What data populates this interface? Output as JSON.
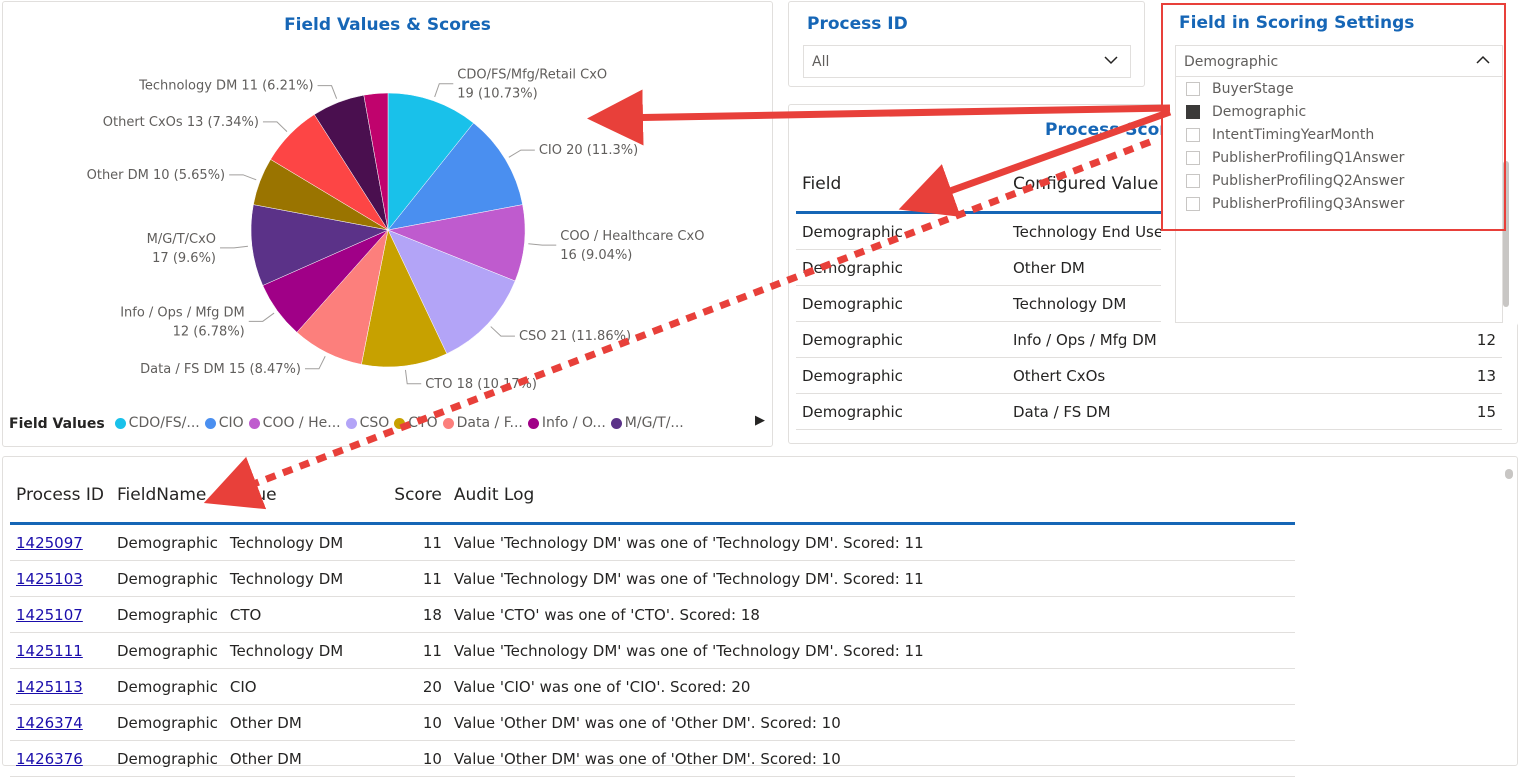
{
  "pie_card": {
    "title": "Field Values & Scores",
    "legend_title": "Field Values",
    "legend": [
      {
        "label": "CDO/FS/...",
        "color": "#19c1ea"
      },
      {
        "label": "CIO",
        "color": "#4a8ff0"
      },
      {
        "label": "COO / He...",
        "color": "#bf5bce"
      },
      {
        "label": "CSO",
        "color": "#b3a4f7"
      },
      {
        "label": "CTO",
        "color": "#c7a100"
      },
      {
        "label": "Data / F...",
        "color": "#fc7f7c"
      },
      {
        "label": "Info / O...",
        "color": "#a00087"
      },
      {
        "label": "M/G/T/...",
        "color": "#5b3288"
      }
    ],
    "legend_arrow": "▶"
  },
  "chart_data": {
    "type": "pie",
    "title": "Field Values & Scores",
    "slices": [
      {
        "label": "CDO/FS/Mfg/Retail CxO",
        "value": 19,
        "pct": "10.73%",
        "color": "#19c1ea",
        "text1": "CDO/FS/Mfg/Retail CxO",
        "text2": "19 (10.73%)"
      },
      {
        "label": "CIO",
        "value": 20,
        "pct": "11.3%",
        "color": "#4a8ff0",
        "text1": "CIO 20 (11.3%)",
        "text2": ""
      },
      {
        "label": "COO / Healthcare CxO",
        "value": 16,
        "pct": "9.04%",
        "color": "#bf5bce",
        "text1": "COO / Healthcare CxO",
        "text2": "16 (9.04%)"
      },
      {
        "label": "CSO",
        "value": 21,
        "pct": "11.86%",
        "color": "#b3a4f7",
        "text1": "CSO 21 (11.86%)",
        "text2": ""
      },
      {
        "label": "CTO",
        "value": 18,
        "pct": "10.17%",
        "color": "#c7a100",
        "text1": "CTO 18 (10.17%)",
        "text2": ""
      },
      {
        "label": "Data / FS DM",
        "value": 15,
        "pct": "8.47%",
        "color": "#fc7f7c",
        "text1": "Data / FS DM 15 (8.47%)",
        "text2": ""
      },
      {
        "label": "Info / Ops / Mfg DM",
        "value": 12,
        "pct": "6.78%",
        "color": "#a00087",
        "text1": "Info / Ops / Mfg DM",
        "text2": "12 (6.78%)"
      },
      {
        "label": "M/G/T/CxO",
        "value": 17,
        "pct": "9.6%",
        "color": "#5b3288",
        "text1": "M/G/T/CxO",
        "text2": "17 (9.6%)"
      },
      {
        "label": "Other DM",
        "value": 10,
        "pct": "5.65%",
        "color": "#9a7400",
        "text1": "Other DM 10 (5.65%)",
        "text2": ""
      },
      {
        "label": "Othert CxOs",
        "value": 13,
        "pct": "7.34%",
        "color": "#fd4545",
        "text1": "Othert CxOs 13 (7.34%)",
        "text2": ""
      },
      {
        "label": "Technology DM",
        "value": 11,
        "pct": "6.21%",
        "color": "#4a0f4f",
        "text1": "Technology DM 11 (6.21%)",
        "text2": ""
      },
      {
        "label": "Technology End User",
        "value": 5,
        "pct": "",
        "color": "#c0036d",
        "text1": "",
        "text2": ""
      }
    ]
  },
  "process_id_slicer": {
    "title": "Process ID",
    "value": "All"
  },
  "field_slicer": {
    "title": "Field in Scoring Settings",
    "value": "Demographic",
    "options": [
      {
        "label": "BuyerStage",
        "checked": false
      },
      {
        "label": "Demographic",
        "checked": true
      },
      {
        "label": "IntentTimingYearMonth",
        "checked": false
      },
      {
        "label": "PublisherProfilingQ1Answer",
        "checked": false
      },
      {
        "label": "PublisherProfilingQ2Answer",
        "checked": false
      },
      {
        "label": "PublisherProfilingQ3Answer",
        "checked": false
      }
    ]
  },
  "process_scoring": {
    "title": "Process Scorin",
    "columns": [
      "Field",
      "Configured Value",
      ""
    ],
    "rows": [
      [
        "Demographic",
        "Technology End User",
        ""
      ],
      [
        "Demographic",
        "Other DM",
        ""
      ],
      [
        "Demographic",
        "Technology DM",
        ""
      ],
      [
        "Demographic",
        "Info / Ops / Mfg DM",
        "12"
      ],
      [
        "Demographic",
        "Othert CxOs",
        "13"
      ],
      [
        "Demographic",
        "Data / FS DM",
        "15"
      ]
    ]
  },
  "audit_table": {
    "columns": [
      "Process ID",
      "FieldName",
      "Value",
      "Score",
      "Audit Log"
    ],
    "rows": [
      [
        "1425097",
        "Demographic",
        "Technology DM",
        "11",
        "Value 'Technology DM' was one of 'Technology DM'. Scored: 11"
      ],
      [
        "1425103",
        "Demographic",
        "Technology DM",
        "11",
        "Value 'Technology DM' was one of 'Technology DM'. Scored: 11"
      ],
      [
        "1425107",
        "Demographic",
        "CTO",
        "18",
        "Value 'CTO' was one of 'CTO'. Scored: 18"
      ],
      [
        "1425111",
        "Demographic",
        "Technology DM",
        "11",
        "Value 'Technology DM' was one of 'Technology DM'. Scored: 11"
      ],
      [
        "1425113",
        "Demographic",
        "CIO",
        "20",
        "Value 'CIO' was one of 'CIO'. Scored: 20"
      ],
      [
        "1426374",
        "Demographic",
        "Other DM",
        "10",
        "Value 'Other DM' was one of 'Other DM'. Scored: 10"
      ],
      [
        "1426376",
        "Demographic",
        "Other DM",
        "10",
        "Value 'Other DM' was one of 'Other DM'. Scored: 10"
      ]
    ]
  },
  "colors": {
    "accent": "#1666b6",
    "annotation": "#e8403a",
    "link": "#1a0dab"
  }
}
